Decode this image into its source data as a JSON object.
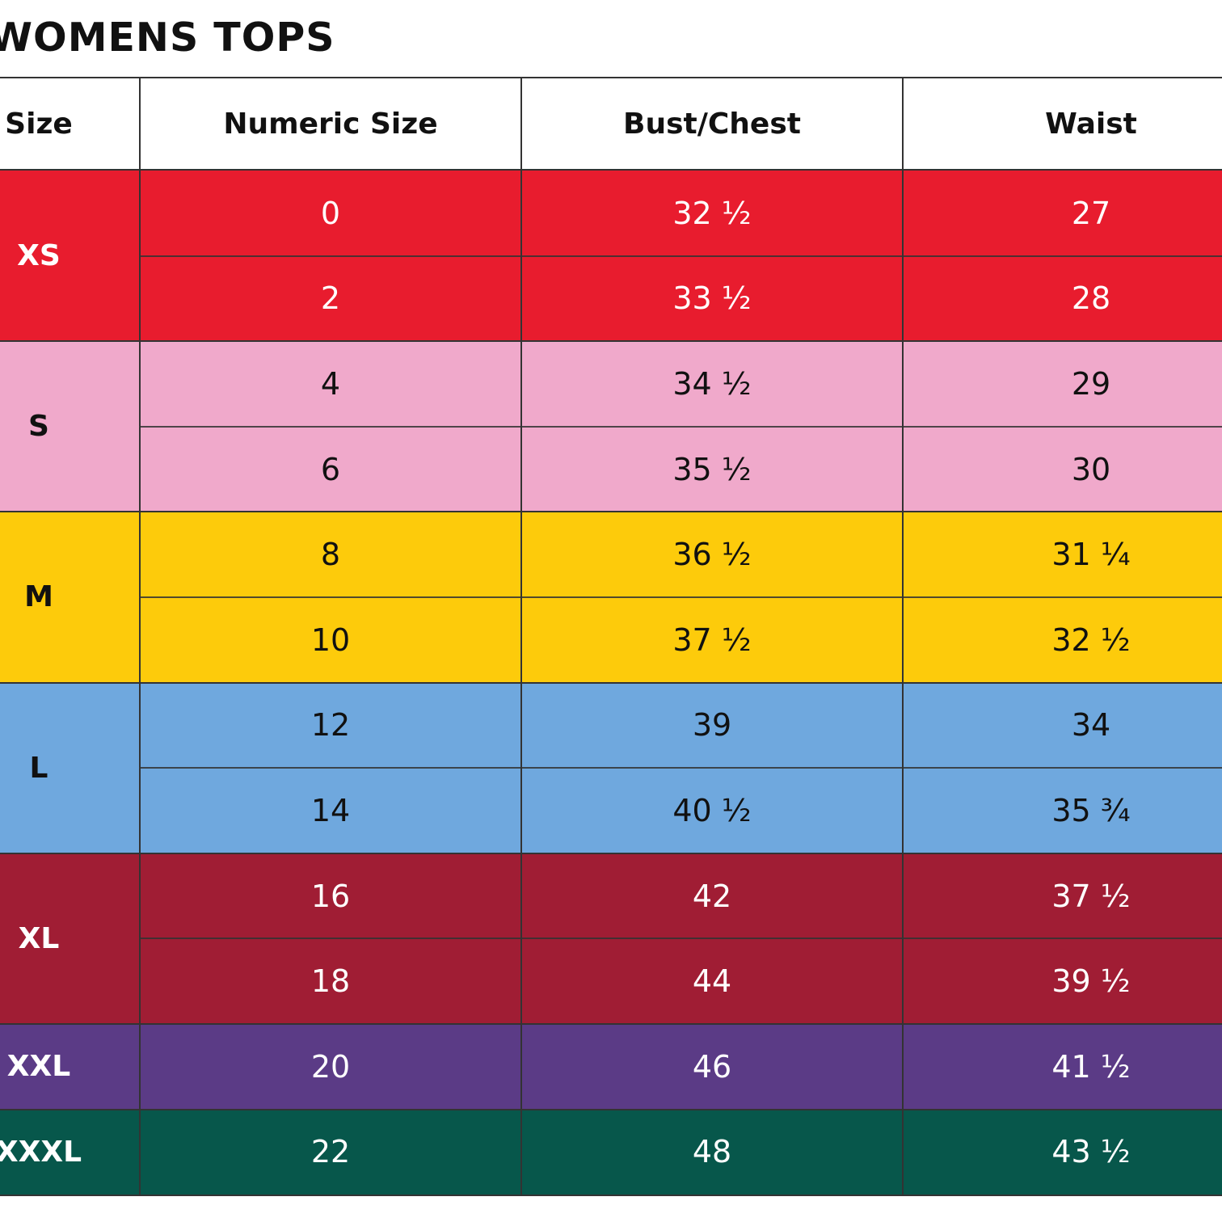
{
  "title": "WOMENS TOPS",
  "columns": [
    "Size",
    "Numeric Size",
    "Bust/Chest",
    "Waist"
  ],
  "groups": [
    {
      "size": "XS",
      "bg": "#E81C2E",
      "text": "#FFFFFF",
      "rows": [
        {
          "numeric": "0",
          "bust": "32 ½",
          "waist": "27"
        },
        {
          "numeric": "2",
          "bust": "33 ½",
          "waist": "28"
        }
      ]
    },
    {
      "size": "S",
      "bg": "#F0A9CB",
      "text": "#111111",
      "rows": [
        {
          "numeric": "4",
          "bust": "34 ½",
          "waist": "29"
        },
        {
          "numeric": "6",
          "bust": "35 ½",
          "waist": "30"
        }
      ]
    },
    {
      "size": "M",
      "bg": "#FDCB0B",
      "text": "#111111",
      "rows": [
        {
          "numeric": "8",
          "bust": "36 ½",
          "waist": "31 ¼"
        },
        {
          "numeric": "10",
          "bust": "37 ½",
          "waist": "32 ½"
        }
      ]
    },
    {
      "size": "L",
      "bg": "#6FA8DE",
      "text": "#111111",
      "rows": [
        {
          "numeric": "12",
          "bust": "39",
          "waist": "34"
        },
        {
          "numeric": "14",
          "bust": "40 ½",
          "waist": "35 ¾"
        }
      ]
    },
    {
      "size": "XL",
      "bg": "#A01D34",
      "text": "#FFFFFF",
      "rows": [
        {
          "numeric": "16",
          "bust": "42",
          "waist": "37 ½"
        },
        {
          "numeric": "18",
          "bust": "44",
          "waist": "39 ½"
        }
      ]
    },
    {
      "size": "XXL",
      "bg": "#5B3B86",
      "text": "#FFFFFF",
      "rows": [
        {
          "numeric": "20",
          "bust": "46",
          "waist": "41 ½"
        }
      ]
    },
    {
      "size": "XXXL",
      "bg": "#07574B",
      "text": "#FFFFFF",
      "rows": [
        {
          "numeric": "22",
          "bust": "48",
          "waist": "43 ½"
        }
      ]
    }
  ]
}
